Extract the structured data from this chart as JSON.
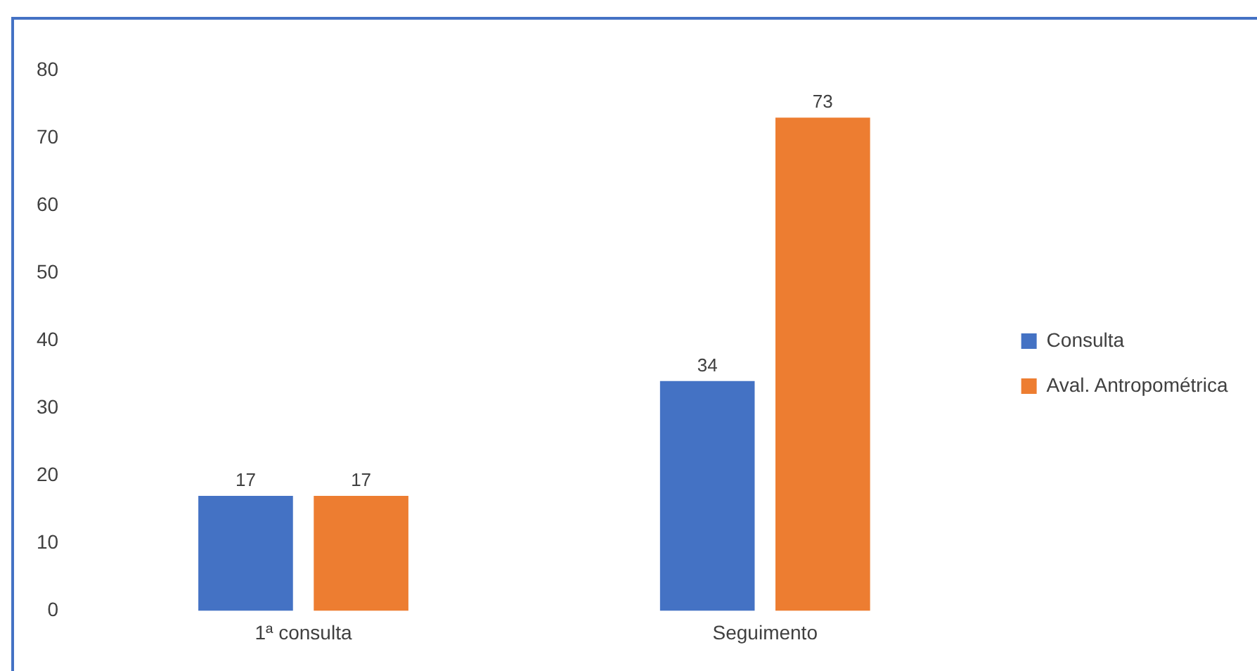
{
  "chart_data": {
    "type": "bar",
    "categories": [
      "1ª consulta",
      "Seguimento"
    ],
    "series": [
      {
        "name": "Consulta",
        "color": "#4472c4",
        "values": [
          17,
          34
        ]
      },
      {
        "name": "Aval. Antropométrica",
        "color": "#ed7d31",
        "values": [
          17,
          73
        ]
      }
    ],
    "ylim": [
      0,
      80
    ],
    "yticks": [
      0,
      10,
      20,
      30,
      40,
      50,
      60,
      70,
      80
    ],
    "grid": false,
    "legend": "right",
    "data_labels": true
  }
}
